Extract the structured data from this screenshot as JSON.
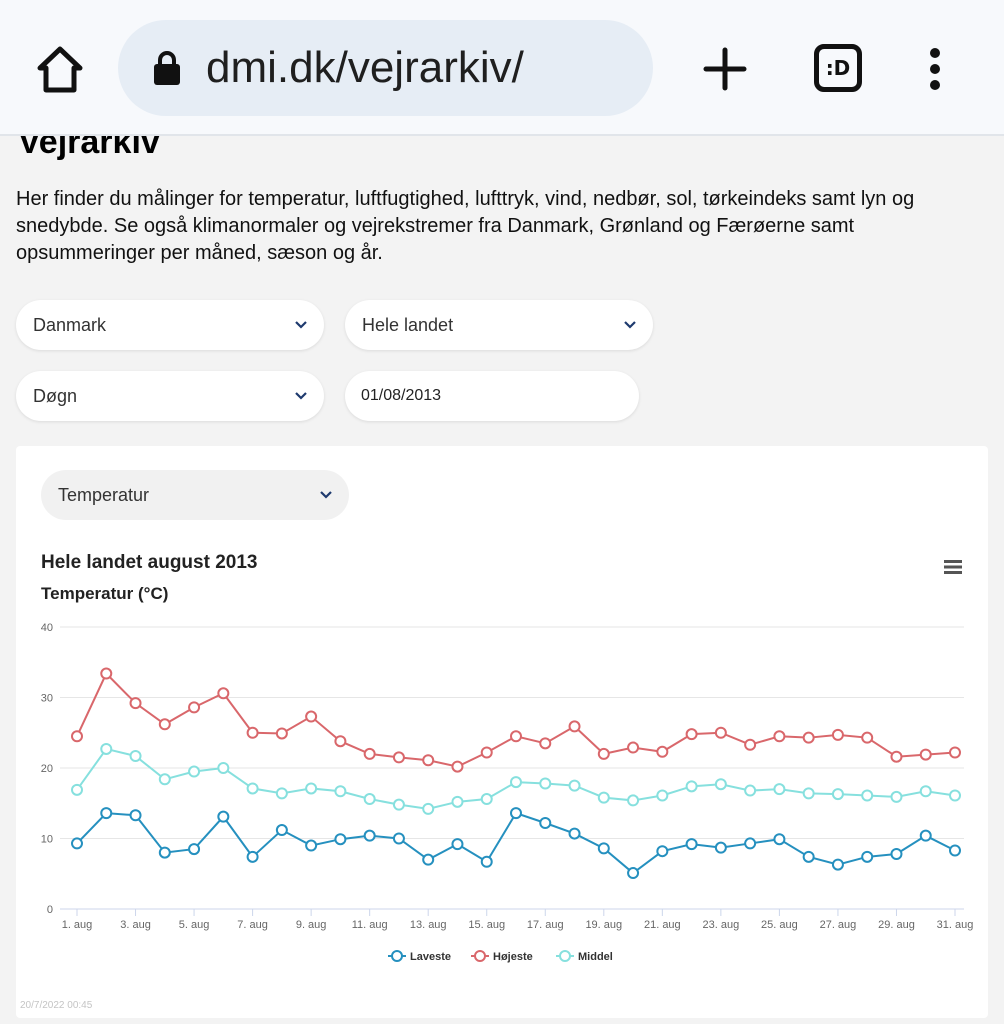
{
  "browser": {
    "url": "dmi.dk/vejrarkiv/",
    "tabs_label": ":D"
  },
  "page": {
    "title": "Vejrarkiv",
    "intro": "Her finder du målinger for temperatur, luftfugtighed, lufttryk, vind, nedbør, sol, tørkeindeks samt lyn og snedybde. Se også klimanormaler og vejrekstremer fra Danmark, Grønland og Færøerne samt opsummeringer per måned, sæson og år."
  },
  "filters": {
    "country": "Danmark",
    "region": "Hele landet",
    "period": "Døgn",
    "date": "01/08/2013",
    "metric": "Temperatur"
  },
  "chart_timestamp": "20/7/2022 00:45",
  "colors": {
    "laveste": "#2590bf",
    "hojeste": "#d9676b",
    "middel": "#86e0de",
    "chevron": "#1e3a6e"
  },
  "chart_data": {
    "type": "line",
    "title": "Hele landet august 2013",
    "subtitle": "Temperatur (°C)",
    "xlabel": "",
    "ylabel": "",
    "ylim": [
      0,
      40
    ],
    "yticks": [
      0,
      10,
      20,
      30,
      40
    ],
    "grid": true,
    "legend_position": "bottom-center",
    "xtick_labels": [
      "1. aug",
      "3. aug",
      "5. aug",
      "7. aug",
      "9. aug",
      "11. aug",
      "13. aug",
      "15. aug",
      "17. aug",
      "19. aug",
      "21. aug",
      "23. aug",
      "25. aug",
      "27. aug",
      "29. aug",
      "31. aug"
    ],
    "x": [
      1,
      2,
      3,
      4,
      5,
      6,
      7,
      8,
      9,
      10,
      11,
      12,
      13,
      14,
      15,
      16,
      17,
      18,
      19,
      20,
      21,
      22,
      23,
      24,
      25,
      26,
      27,
      28,
      29,
      30,
      31
    ],
    "series": [
      {
        "name": "Laveste",
        "color": "#2590bf",
        "values": [
          9.3,
          13.6,
          13.3,
          8.0,
          8.5,
          13.1,
          7.4,
          11.2,
          9.0,
          9.9,
          10.4,
          10.0,
          7.0,
          9.2,
          6.7,
          13.6,
          12.2,
          10.7,
          8.6,
          5.1,
          8.2,
          9.2,
          8.7,
          9.3,
          9.9,
          7.4,
          6.3,
          7.4,
          7.8,
          10.4,
          8.3
        ]
      },
      {
        "name": "Højeste",
        "color": "#d9676b",
        "values": [
          24.5,
          33.4,
          29.2,
          26.2,
          28.6,
          30.6,
          25.0,
          24.9,
          27.3,
          23.8,
          22.0,
          21.5,
          21.1,
          20.2,
          22.2,
          24.5,
          23.5,
          25.9,
          22.0,
          22.9,
          22.3,
          24.8,
          25.0,
          23.3,
          24.5,
          24.3,
          24.7,
          24.3,
          21.6,
          21.9,
          22.2
        ]
      },
      {
        "name": "Middel",
        "color": "#86e0de",
        "values": [
          16.9,
          22.7,
          21.7,
          18.4,
          19.5,
          20.0,
          17.1,
          16.4,
          17.1,
          16.7,
          15.6,
          14.8,
          14.2,
          15.2,
          15.6,
          18.0,
          17.8,
          17.5,
          15.8,
          15.4,
          16.1,
          17.4,
          17.7,
          16.8,
          17.0,
          16.4,
          16.3,
          16.1,
          15.9,
          16.7,
          16.1
        ]
      }
    ]
  }
}
